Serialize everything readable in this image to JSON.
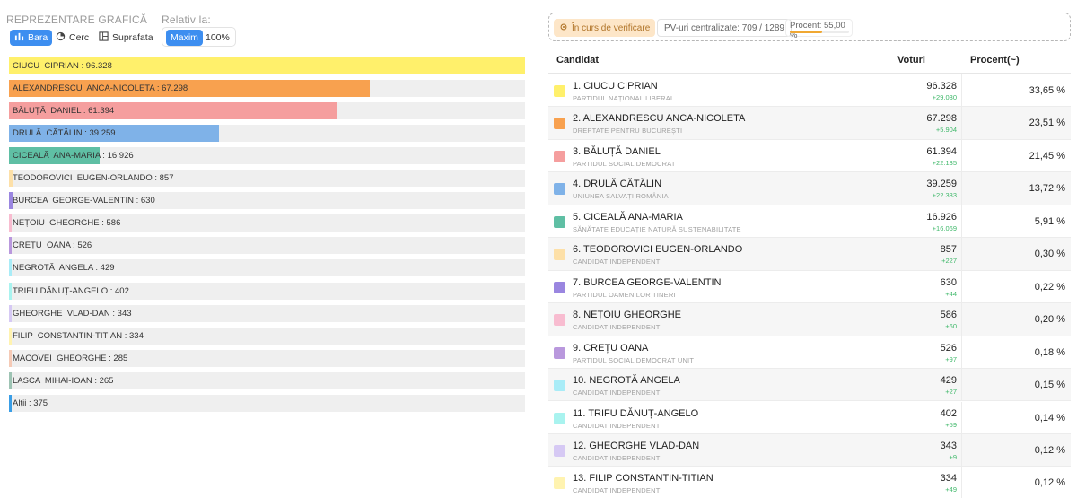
{
  "left": {
    "repr_label": "REPREZENTARE GRAFICĂ",
    "relativ_label": "Relativ la:",
    "buttons": {
      "bara": "Bara",
      "cerc": "Cerc",
      "suprafata": "Suprafata",
      "maxim": "Maxim",
      "percent": "100%"
    },
    "bars": [
      {
        "label": "CIUCU  CIPRIAN : 96.328",
        "value": 96328,
        "color": "#fff06b"
      },
      {
        "label": "ALEXANDRESCU  ANCA-NICOLETA : 67.298",
        "value": 67298,
        "color": "#f8a14f"
      },
      {
        "label": "BĂLUȚĂ  DANIEL : 61.394",
        "value": 61394,
        "color": "#f59e9e"
      },
      {
        "label": "DRULĂ  CĂTĂLIN : 39.259",
        "value": 39259,
        "color": "#7fb2e8"
      },
      {
        "label": "CICEALĂ  ANA-MARIA : 16.926",
        "value": 16926,
        "color": "#5fbfa4"
      },
      {
        "label": "TEODOROVICI  EUGEN-ORLANDO : 857",
        "value": 857,
        "color": "#fde0a8"
      },
      {
        "label": "BURCEA  GEORGE-VALENTIN : 630",
        "value": 630,
        "color": "#9a86e0"
      },
      {
        "label": "NEȚOIU  GHEORGHE : 586",
        "value": 586,
        "color": "#f8bcd0"
      },
      {
        "label": "CREȚU  OANA : 526",
        "value": 526,
        "color": "#b998dd"
      },
      {
        "label": "NEGROTĂ  ANGELA : 429",
        "value": 429,
        "color": "#a9ecf7"
      },
      {
        "label": "TRIFU DĂNUȚ-ANGELO : 402",
        "value": 402,
        "color": "#a9f3ef"
      },
      {
        "label": "GHEORGHE  VLAD-DAN : 343",
        "value": 343,
        "color": "#d6c9f4"
      },
      {
        "label": "FILIP  CONSTANTIN-TITIAN : 334",
        "value": 334,
        "color": "#fff3b0"
      },
      {
        "label": "MACOVEI  GHEORGHE : 285",
        "value": 285,
        "color": "#f5cab6"
      },
      {
        "label": "LASCA  MIHAI-IOAN : 265",
        "value": 265,
        "color": "#9ec4b4"
      },
      {
        "label": "Alții : 375",
        "value": 375,
        "color": "#3a9ee6"
      }
    ]
  },
  "status": {
    "verif": "În curs de verificare",
    "pv": "PV-uri centralizate: 709 / 1289",
    "procent": "Procent: 55,00 %",
    "procent_value": 0.55
  },
  "table": {
    "headers": {
      "candidat": "Candidat",
      "voturi": "Voturi",
      "procent": "Procent(~)"
    },
    "rows": [
      {
        "name": "1. CIUCU CIPRIAN",
        "party": "PARTIDUL NAȚIONAL LIBERAL",
        "votes": "96.328",
        "delta": "+29.030",
        "pct": "33,65 %",
        "color": "#fff06b"
      },
      {
        "name": "2. ALEXANDRESCU ANCA-NICOLETA",
        "party": "DREPTATE PENTRU BUCUREȘTI",
        "votes": "67.298",
        "delta": "+5.904",
        "pct": "23,51 %",
        "color": "#f8a14f"
      },
      {
        "name": "3. BĂLUȚĂ DANIEL",
        "party": "PARTIDUL SOCIAL DEMOCRAT",
        "votes": "61.394",
        "delta": "+22.135",
        "pct": "21,45 %",
        "color": "#f59e9e"
      },
      {
        "name": "4. DRULĂ CĂTĂLIN",
        "party": "UNIUNEA SALVAȚI ROMÂNIA",
        "votes": "39.259",
        "delta": "+22.333",
        "pct": "13,72 %",
        "color": "#7fb2e8"
      },
      {
        "name": "5. CICEALĂ ANA-MARIA",
        "party": "SĂNĂTATE EDUCAȚIE NATURĂ SUSTENABILITATE",
        "votes": "16.926",
        "delta": "+16.069",
        "pct": "5,91 %",
        "color": "#5fbfa4"
      },
      {
        "name": "6. TEODOROVICI EUGEN-ORLANDO",
        "party": "CANDIDAT INDEPENDENT",
        "votes": "857",
        "delta": "+227",
        "pct": "0,30 %",
        "color": "#fde0a8"
      },
      {
        "name": "7. BURCEA GEORGE-VALENTIN",
        "party": "PARTIDUL OAMENILOR TINERI",
        "votes": "630",
        "delta": "+44",
        "pct": "0,22 %",
        "color": "#9a86e0"
      },
      {
        "name": "8. NEȚOIU GHEORGHE",
        "party": "CANDIDAT INDEPENDENT",
        "votes": "586",
        "delta": "+60",
        "pct": "0,20 %",
        "color": "#f8bcd0"
      },
      {
        "name": "9. CREȚU OANA",
        "party": "PARTIDUL SOCIAL DEMOCRAT UNIT",
        "votes": "526",
        "delta": "+97",
        "pct": "0,18 %",
        "color": "#b998dd"
      },
      {
        "name": "10. NEGROTĂ ANGELA",
        "party": "CANDIDAT INDEPENDENT",
        "votes": "429",
        "delta": "+27",
        "pct": "0,15 %",
        "color": "#a9ecf7"
      },
      {
        "name": "11. TRIFU DĂNUȚ-ANGELO",
        "party": "CANDIDAT INDEPENDENT",
        "votes": "402",
        "delta": "+59",
        "pct": "0,14 %",
        "color": "#a9f3ef"
      },
      {
        "name": "12. GHEORGHE VLAD-DAN",
        "party": "CANDIDAT INDEPENDENT",
        "votes": "343",
        "delta": "+9",
        "pct": "0,12 %",
        "color": "#d6c9f4"
      },
      {
        "name": "13. FILIP CONSTANTIN-TITIAN",
        "party": "CANDIDAT INDEPENDENT",
        "votes": "334",
        "delta": "+49",
        "pct": "0,12 %",
        "color": "#fff3b0"
      }
    ]
  }
}
